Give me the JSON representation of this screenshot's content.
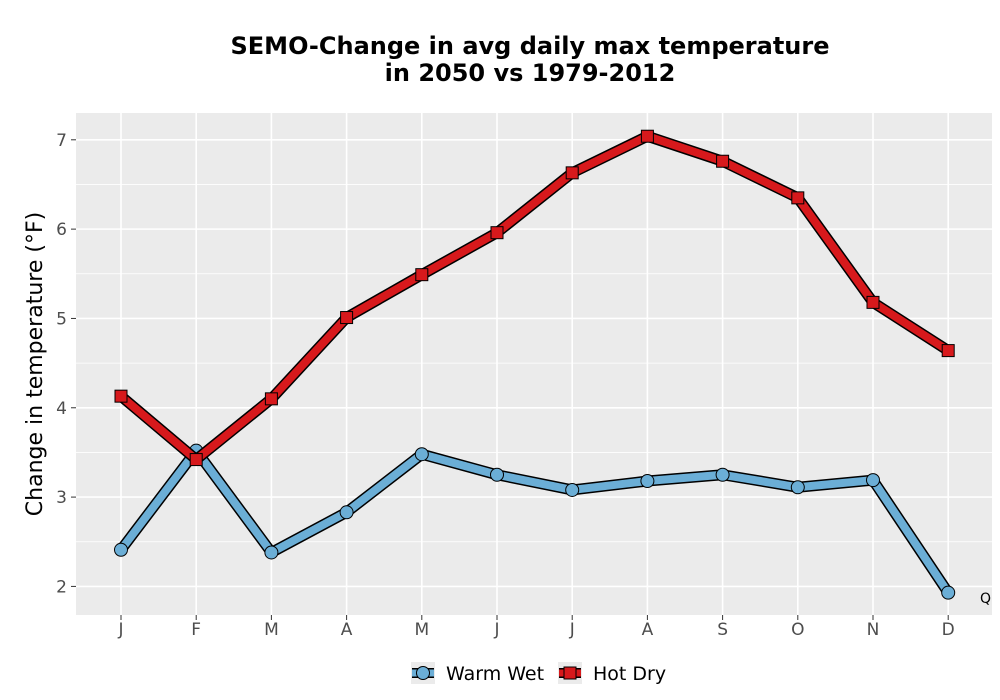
{
  "chart_data": {
    "type": "line",
    "title_lines": [
      "SEMO-Change in avg daily max temperature",
      "in 2050 vs 1979-2012"
    ],
    "xlabel": "",
    "ylabel": "Change in temperature (°F)",
    "categories": [
      "J",
      "F",
      "M",
      "A",
      "M",
      "J",
      "J",
      "A",
      "S",
      "O",
      "N",
      "D"
    ],
    "yticks": [
      2,
      3,
      4,
      5,
      6,
      7
    ],
    "ylim": [
      1.68,
      7.3
    ],
    "grid": true,
    "legend_position": "bottom",
    "series": [
      {
        "name": "Warm Wet",
        "marker": "circle",
        "color": "#6baed6",
        "values": [
          2.41,
          3.52,
          2.38,
          2.83,
          3.48,
          3.25,
          3.08,
          3.18,
          3.25,
          3.11,
          3.19,
          1.93
        ]
      },
      {
        "name": "Hot Dry",
        "marker": "square",
        "color": "#d7191c",
        "values": [
          4.13,
          3.42,
          4.1,
          5.01,
          5.49,
          5.96,
          6.63,
          7.04,
          6.76,
          6.35,
          5.18,
          4.64
        ]
      }
    ],
    "annotation": "Q"
  },
  "colors": {
    "panel_background": "#ebebeb",
    "grid": "#ffffff",
    "outline": "#000000"
  }
}
